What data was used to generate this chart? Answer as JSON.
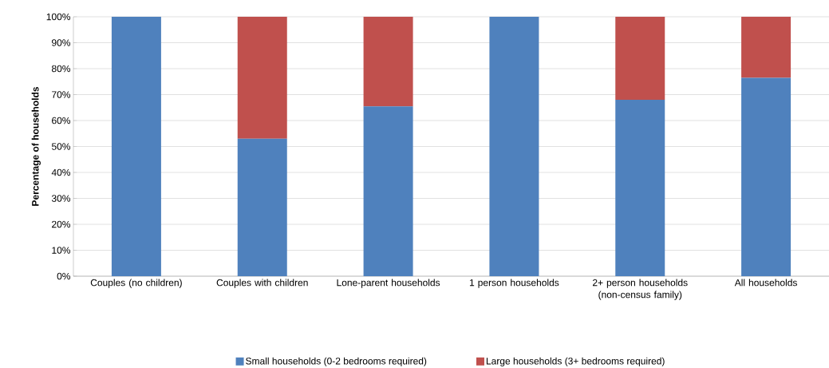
{
  "chart_data": {
    "type": "bar",
    "stacked": true,
    "ylabel": "Percentage of households",
    "categories": [
      "Couples (no children)",
      "Couples with children",
      "Lone-parent households",
      "1 person households",
      "2+ person households (non-census family)",
      "All households"
    ],
    "series": [
      {
        "name": "Small households (0-2 bedrooms required)",
        "color": "#4f81bd",
        "values": [
          100,
          53,
          65.5,
          100,
          68,
          76.5
        ]
      },
      {
        "name": "Large households (3+ bedrooms required)",
        "color": "#c0504d",
        "values": [
          0,
          47,
          34.5,
          0,
          32,
          23.5
        ]
      }
    ],
    "ylim": [
      0,
      100
    ],
    "yticks": [
      {
        "value": 0,
        "label": "0%"
      },
      {
        "value": 10,
        "label": "10%"
      },
      {
        "value": 20,
        "label": "20%"
      },
      {
        "value": 30,
        "label": "30%"
      },
      {
        "value": 40,
        "label": "40%"
      },
      {
        "value": 50,
        "label": "50%"
      },
      {
        "value": 60,
        "label": "60%"
      },
      {
        "value": 70,
        "label": "70%"
      },
      {
        "value": 80,
        "label": "80%"
      },
      {
        "value": 90,
        "label": "90%"
      },
      {
        "value": 100,
        "label": "100%"
      }
    ],
    "grid": "y",
    "legend": "bottom"
  }
}
